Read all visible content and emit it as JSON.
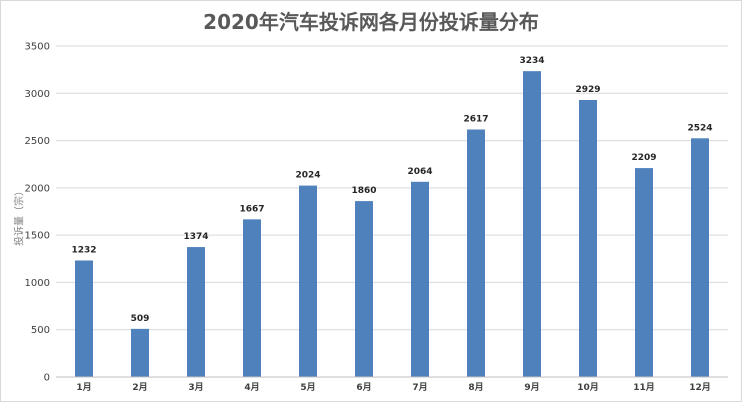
{
  "chart_data": {
    "type": "bar",
    "title": "2020年汽车投诉网各月份投诉量分布",
    "ylabel": "投诉量（宗）",
    "xlabel": "",
    "categories": [
      "1月",
      "2月",
      "3月",
      "4月",
      "5月",
      "6月",
      "7月",
      "8月",
      "9月",
      "10月",
      "11月",
      "12月"
    ],
    "values": [
      1232,
      509,
      1374,
      1667,
      2024,
      1860,
      2064,
      2617,
      3234,
      2929,
      2209,
      2524
    ],
    "ylim": [
      0,
      3500
    ],
    "yticks": [
      0,
      500,
      1000,
      1500,
      2000,
      2500,
      3000,
      3500
    ],
    "grid": true,
    "legend": "none",
    "data_labels": true,
    "colors": {
      "bar": "#4f81bd",
      "grid": "#d9d9d9"
    }
  }
}
